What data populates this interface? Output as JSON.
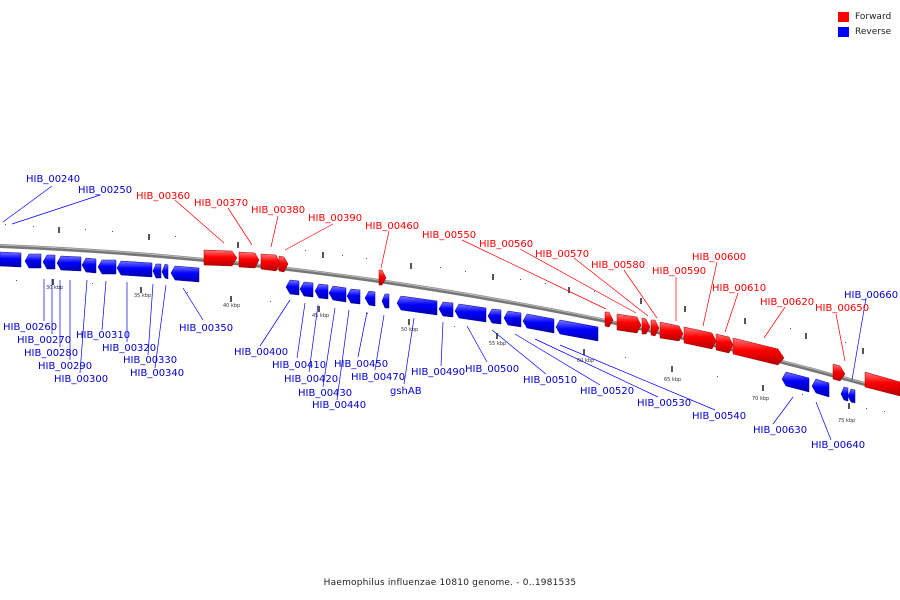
{
  "caption": "Haemophilus influenzae 10810 genome. - 0..1981535",
  "legend": [
    {
      "label": "Forward",
      "color": "#ff0000"
    },
    {
      "label": "Reverse",
      "color": "#0000ff"
    }
  ],
  "colors": {
    "forward": "#ff0000",
    "reverse": "#0000ff",
    "axis": "#888888"
  },
  "kbp_labels": [
    "30 kbp",
    "35 kbp",
    "40 kbp",
    "45 kbp",
    "50 kbp",
    "55 kbp",
    "60 kbp",
    "65 kbp",
    "70 kbp",
    "75 kbp"
  ],
  "gene_labels": {
    "HIB_00240": "HIB_00240",
    "HIB_00250": "HIB_00250",
    "HIB_00260": "HIB_00260",
    "HIB_00270": "HIB_00270",
    "HIB_00280": "HIB_00280",
    "HIB_00290": "HIB_00290",
    "HIB_00300": "HIB_00300",
    "HIB_00310": "HIB_00310",
    "HIB_00320": "HIB_00320",
    "HIB_00330": "HIB_00330",
    "HIB_00340": "HIB_00340",
    "HIB_00350": "HIB_00350",
    "HIB_00360": "HIB_00360",
    "HIB_00370": "HIB_00370",
    "HIB_00380": "HIB_00380",
    "HIB_00390": "HIB_00390",
    "HIB_00400": "HIB_00400",
    "HIB_00410": "HIB_00410",
    "HIB_00420": "HIB_00420",
    "HIB_00430": "HIB_00430",
    "HIB_00440": "HIB_00440",
    "HIB_00450": "HIB_00450",
    "HIB_00460": "HIB_00460",
    "HIB_00470": "HIB_00470",
    "gshAB": "gshAB",
    "HIB_00490": "HIB_00490",
    "HIB_00500": "HIB_00500",
    "HIB_00510": "HIB_00510",
    "HIB_00520": "HIB_00520",
    "HIB_00530": "HIB_00530",
    "HIB_00540": "HIB_00540",
    "HIB_00550": "HIB_00550",
    "HIB_00560": "HIB_00560",
    "HIB_00570": "HIB_00570",
    "HIB_00580": "HIB_00580",
    "HIB_00590": "HIB_00590",
    "HIB_00600": "HIB_00600",
    "HIB_00610": "HIB_00610",
    "HIB_00620": "HIB_00620",
    "HIB_00630": "HIB_00630",
    "HIB_00640": "HIB_00640",
    "HIB_00650": "HIB_00650",
    "HIB_00660": "HIB_00660"
  }
}
